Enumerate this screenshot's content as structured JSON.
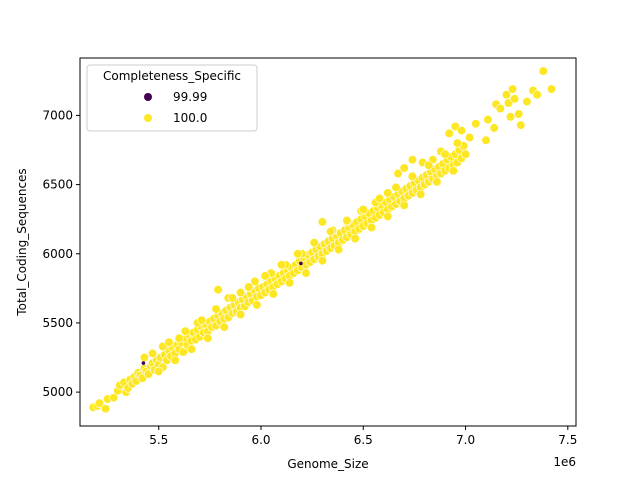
{
  "chart_data": {
    "type": "scatter",
    "title": "",
    "xlabel": "Genome_Size",
    "ylabel": "Total_Coding_Sequences",
    "x_offset_label": "1e6",
    "xlim": [
      5.115,
      7.54
    ],
    "ylim": [
      4755,
      7415
    ],
    "xticks": [
      5.5,
      6.0,
      6.5,
      7.0,
      7.5
    ],
    "xtick_labels": [
      "5.5",
      "6.0",
      "6.5",
      "7.0",
      "7.5"
    ],
    "yticks": [
      5000,
      5500,
      6000,
      6500,
      7000
    ],
    "ytick_labels": [
      "5000",
      "5500",
      "6000",
      "6500",
      "7000"
    ],
    "grid": false,
    "legend": {
      "title": "Completeness_Specific",
      "position": "upper left",
      "entries": [
        {
          "label": "99.99",
          "color": "#440154"
        },
        {
          "label": "100.0",
          "color": "#FDE725"
        }
      ]
    },
    "hue": "Completeness_Specific",
    "series": [
      {
        "name": "99.99",
        "color": "#440154",
        "points": [
          [
            5.425,
            5210
          ],
          [
            6.195,
            5930
          ]
        ]
      },
      {
        "name": "100.0",
        "color": "#FDE725",
        "points": [
          [
            5.18,
            4890
          ],
          [
            5.2,
            4900
          ],
          [
            5.21,
            4920
          ],
          [
            5.24,
            4880
          ],
          [
            5.25,
            4950
          ],
          [
            5.28,
            4960
          ],
          [
            5.3,
            5010
          ],
          [
            5.31,
            5050
          ],
          [
            5.33,
            5070
          ],
          [
            5.34,
            5000
          ],
          [
            5.35,
            5030
          ],
          [
            5.36,
            5090
          ],
          [
            5.37,
            5060
          ],
          [
            5.38,
            5110
          ],
          [
            5.39,
            5080
          ],
          [
            5.4,
            5140
          ],
          [
            5.41,
            5120
          ],
          [
            5.42,
            5100
          ],
          [
            5.43,
            5170
          ],
          [
            5.44,
            5150
          ],
          [
            5.45,
            5130
          ],
          [
            5.46,
            5190
          ],
          [
            5.47,
            5210
          ],
          [
            5.48,
            5160
          ],
          [
            5.49,
            5230
          ],
          [
            5.5,
            5200
          ],
          [
            5.51,
            5250
          ],
          [
            5.52,
            5180
          ],
          [
            5.53,
            5270
          ],
          [
            5.54,
            5230
          ],
          [
            5.55,
            5300
          ],
          [
            5.56,
            5260
          ],
          [
            5.57,
            5320
          ],
          [
            5.58,
            5280
          ],
          [
            5.59,
            5340
          ],
          [
            5.6,
            5310
          ],
          [
            5.61,
            5360
          ],
          [
            5.62,
            5290
          ],
          [
            5.63,
            5390
          ],
          [
            5.64,
            5340
          ],
          [
            5.65,
            5410
          ],
          [
            5.66,
            5370
          ],
          [
            5.67,
            5430
          ],
          [
            5.68,
            5380
          ],
          [
            5.69,
            5450
          ],
          [
            5.7,
            5400
          ],
          [
            5.71,
            5470
          ],
          [
            5.72,
            5430
          ],
          [
            5.73,
            5490
          ],
          [
            5.74,
            5440
          ],
          [
            5.75,
            5510
          ],
          [
            5.76,
            5470
          ],
          [
            5.77,
            5530
          ],
          [
            5.78,
            5480
          ],
          [
            5.79,
            5550
          ],
          [
            5.8,
            5510
          ],
          [
            5.81,
            5570
          ],
          [
            5.82,
            5530
          ],
          [
            5.83,
            5590
          ],
          [
            5.84,
            5540
          ],
          [
            5.85,
            5610
          ],
          [
            5.86,
            5570
          ],
          [
            5.87,
            5630
          ],
          [
            5.88,
            5580
          ],
          [
            5.89,
            5650
          ],
          [
            5.9,
            5610
          ],
          [
            5.91,
            5670
          ],
          [
            5.92,
            5620
          ],
          [
            5.93,
            5690
          ],
          [
            5.94,
            5650
          ],
          [
            5.95,
            5710
          ],
          [
            5.96,
            5660
          ],
          [
            5.97,
            5730
          ],
          [
            5.98,
            5690
          ],
          [
            5.99,
            5750
          ],
          [
            6.0,
            5700
          ],
          [
            6.01,
            5760
          ],
          [
            6.02,
            5720
          ],
          [
            6.03,
            5780
          ],
          [
            6.04,
            5740
          ],
          [
            6.05,
            5800
          ],
          [
            6.06,
            5760
          ],
          [
            6.07,
            5820
          ],
          [
            6.08,
            5780
          ],
          [
            6.09,
            5840
          ],
          [
            6.1,
            5800
          ],
          [
            6.11,
            5860
          ],
          [
            6.12,
            5820
          ],
          [
            6.13,
            5880
          ],
          [
            6.14,
            5840
          ],
          [
            6.15,
            5900
          ],
          [
            6.16,
            5860
          ],
          [
            6.17,
            5920
          ],
          [
            6.18,
            5880
          ],
          [
            6.19,
            5950
          ],
          [
            6.2,
            5900
          ],
          [
            6.21,
            5970
          ],
          [
            6.22,
            5920
          ],
          [
            6.23,
            5990
          ],
          [
            6.24,
            5940
          ],
          [
            6.25,
            6010
          ],
          [
            6.26,
            5960
          ],
          [
            6.27,
            6030
          ],
          [
            6.28,
            5980
          ],
          [
            6.29,
            6050
          ],
          [
            6.3,
            6000
          ],
          [
            6.31,
            6070
          ],
          [
            6.32,
            6020
          ],
          [
            6.33,
            6090
          ],
          [
            6.34,
            6040
          ],
          [
            6.35,
            6110
          ],
          [
            6.36,
            6060
          ],
          [
            6.37,
            6130
          ],
          [
            6.38,
            6080
          ],
          [
            6.39,
            6150
          ],
          [
            6.4,
            6100
          ],
          [
            6.41,
            6170
          ],
          [
            6.42,
            6120
          ],
          [
            6.43,
            6190
          ],
          [
            6.44,
            6140
          ],
          [
            6.45,
            6210
          ],
          [
            6.46,
            6160
          ],
          [
            6.47,
            6230
          ],
          [
            6.48,
            6180
          ],
          [
            6.49,
            6250
          ],
          [
            6.5,
            6200
          ],
          [
            6.51,
            6270
          ],
          [
            6.52,
            6220
          ],
          [
            6.53,
            6290
          ],
          [
            6.54,
            6240
          ],
          [
            6.55,
            6310
          ],
          [
            6.56,
            6260
          ],
          [
            6.57,
            6330
          ],
          [
            6.58,
            6280
          ],
          [
            6.59,
            6350
          ],
          [
            6.6,
            6300
          ],
          [
            6.61,
            6370
          ],
          [
            6.62,
            6320
          ],
          [
            6.63,
            6390
          ],
          [
            6.64,
            6340
          ],
          [
            6.65,
            6410
          ],
          [
            6.66,
            6360
          ],
          [
            6.67,
            6430
          ],
          [
            6.68,
            6380
          ],
          [
            6.69,
            6450
          ],
          [
            6.7,
            6400
          ],
          [
            6.71,
            6470
          ],
          [
            6.72,
            6420
          ],
          [
            6.73,
            6490
          ],
          [
            6.74,
            6440
          ],
          [
            6.75,
            6510
          ],
          [
            6.76,
            6460
          ],
          [
            6.77,
            6530
          ],
          [
            6.78,
            6480
          ],
          [
            6.79,
            6550
          ],
          [
            6.8,
            6500
          ],
          [
            6.81,
            6570
          ],
          [
            6.82,
            6520
          ],
          [
            6.83,
            6590
          ],
          [
            6.84,
            6540
          ],
          [
            6.85,
            6610
          ],
          [
            6.86,
            6560
          ],
          [
            6.87,
            6630
          ],
          [
            6.88,
            6580
          ],
          [
            6.89,
            6650
          ],
          [
            6.9,
            6600
          ],
          [
            6.91,
            6680
          ],
          [
            6.92,
            6620
          ],
          [
            6.93,
            6700
          ],
          [
            6.94,
            6640
          ],
          [
            6.95,
            6720
          ],
          [
            6.96,
            6660
          ],
          [
            6.97,
            6750
          ],
          [
            6.98,
            6690
          ],
          [
            6.99,
            6780
          ],
          [
            7.0,
            6720
          ],
          [
            5.43,
            5250
          ],
          [
            5.52,
            5330
          ],
          [
            5.6,
            5390
          ],
          [
            5.69,
            5500
          ],
          [
            5.79,
            5740
          ],
          [
            5.84,
            5680
          ],
          [
            5.9,
            5720
          ],
          [
            5.97,
            5800
          ],
          [
            6.05,
            5860
          ],
          [
            6.12,
            5920
          ],
          [
            6.2,
            6000
          ],
          [
            6.3,
            6230
          ],
          [
            6.35,
            6170
          ],
          [
            6.42,
            6230
          ],
          [
            6.49,
            6310
          ],
          [
            6.56,
            6370
          ],
          [
            6.62,
            6440
          ],
          [
            6.67,
            6580
          ],
          [
            6.7,
            6620
          ],
          [
            6.74,
            6680
          ],
          [
            6.79,
            6660
          ],
          [
            6.84,
            6680
          ],
          [
            6.88,
            6740
          ],
          [
            6.92,
            6870
          ],
          [
            6.95,
            6920
          ],
          [
            6.96,
            6800
          ],
          [
            6.98,
            6890
          ],
          [
            7.02,
            6840
          ],
          [
            7.05,
            6940
          ],
          [
            7.1,
            6820
          ],
          [
            7.11,
            6970
          ],
          [
            7.14,
            6910
          ],
          [
            7.15,
            7080
          ],
          [
            7.17,
            7050
          ],
          [
            7.2,
            7150
          ],
          [
            7.21,
            7090
          ],
          [
            7.22,
            6990
          ],
          [
            7.23,
            7190
          ],
          [
            7.24,
            7120
          ],
          [
            7.26,
            7010
          ],
          [
            7.27,
            6930
          ],
          [
            7.3,
            7100
          ],
          [
            7.33,
            7180
          ],
          [
            7.35,
            7150
          ],
          [
            7.38,
            7320
          ],
          [
            7.42,
            7190
          ],
          [
            5.5,
            5150
          ],
          [
            5.58,
            5230
          ],
          [
            5.66,
            5310
          ],
          [
            5.74,
            5390
          ],
          [
            5.82,
            5470
          ],
          [
            5.9,
            5560
          ],
          [
            5.98,
            5630
          ],
          [
            6.06,
            5710
          ],
          [
            6.14,
            5790
          ],
          [
            6.22,
            5860
          ],
          [
            6.3,
            5950
          ],
          [
            6.38,
            6030
          ],
          [
            6.46,
            6110
          ],
          [
            6.54,
            6190
          ],
          [
            6.62,
            6270
          ],
          [
            6.7,
            6350
          ],
          [
            6.78,
            6430
          ],
          [
            6.86,
            6520
          ],
          [
            6.94,
            6600
          ],
          [
            5.47,
            5280
          ],
          [
            5.55,
            5360
          ],
          [
            5.63,
            5440
          ],
          [
            5.71,
            5520
          ],
          [
            5.78,
            5600
          ],
          [
            5.86,
            5680
          ],
          [
            5.94,
            5760
          ],
          [
            6.02,
            5840
          ],
          [
            6.1,
            5920
          ],
          [
            6.18,
            6000
          ],
          [
            6.26,
            6080
          ],
          [
            6.34,
            6160
          ],
          [
            6.42,
            6240
          ],
          [
            6.5,
            6320
          ],
          [
            6.58,
            6400
          ],
          [
            6.66,
            6480
          ],
          [
            6.74,
            6560
          ],
          [
            6.82,
            6640
          ],
          [
            6.9,
            6720
          ]
        ]
      }
    ]
  }
}
